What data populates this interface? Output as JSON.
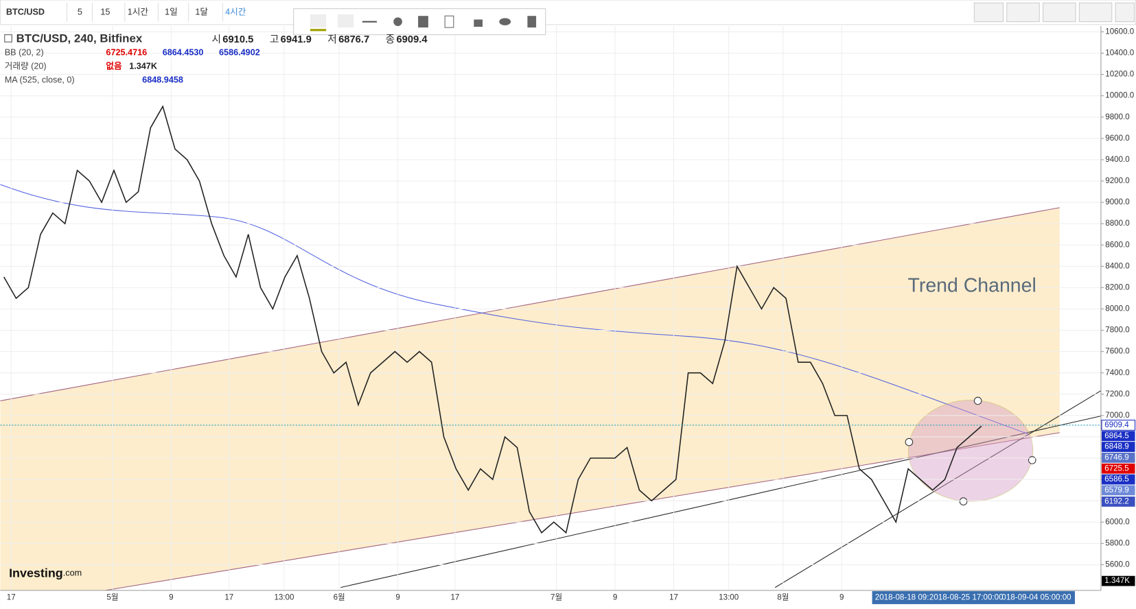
{
  "toolbar": {
    "symbol": "BTC/USD",
    "intervals": [
      "5",
      "15",
      "1시간",
      "1일",
      "1달",
      "4시간"
    ]
  },
  "legend": {
    "title": "BTC/USD, 240, Bitfinex",
    "ohlc": [
      [
        "시",
        "6910.5"
      ],
      [
        "고",
        "6941.9"
      ],
      [
        "저",
        "6876.7"
      ],
      [
        "종",
        "6909.4"
      ]
    ],
    "bb": {
      "name": "BB (20, 2)",
      "values": [
        "6725.4716",
        "6864.4530",
        "6586.4902"
      ]
    },
    "volume": {
      "name": "거래량 (20)",
      "values": [
        "없음",
        "1.347K"
      ]
    },
    "ma": {
      "name": "MA (525, close, 0)",
      "values": [
        "6848.9458"
      ]
    }
  },
  "chart_data": {
    "type": "line",
    "annotation": "Trend Channel",
    "color": "#222222",
    "values": [
      8300,
      8100,
      8200,
      8700,
      8900,
      8800,
      9300,
      9200,
      9000,
      9300,
      9000,
      9100,
      9700,
      9900,
      9500,
      9400,
      9200,
      8800,
      8500,
      8300,
      8700,
      8200,
      8000,
      8300,
      8500,
      8100,
      7600,
      7400,
      7500,
      7100,
      7400,
      7500,
      7600,
      7500,
      7600,
      7500,
      6800,
      6500,
      6300,
      6500,
      6400,
      6800,
      6700,
      6100,
      5900,
      6000,
      5900,
      6400,
      6600,
      6600,
      6600,
      6700,
      6300,
      6200,
      6300,
      6400,
      7400,
      7400,
      7300,
      7700,
      8400,
      8200,
      8000,
      8200,
      8100,
      7500,
      7500,
      7300,
      7000,
      7000,
      6500,
      6400,
      6200,
      6000,
      6500,
      6400,
      6300,
      6400,
      6700,
      6800,
      6900
    ],
    "ylim": [
      5400,
      10600
    ],
    "yticks": [
      {
        "value": 5600,
        "label": "5600.0"
      },
      {
        "value": 5800,
        "label": "5800.0"
      },
      {
        "value": 6000,
        "label": "6000.0"
      },
      {
        "value": 6200,
        "label": "6200.0"
      },
      {
        "value": 6400,
        "label": "6400.0"
      },
      {
        "value": 6600,
        "label": "6600.0"
      },
      {
        "value": 6800,
        "label": "6800.0"
      },
      {
        "value": 7000,
        "label": "7000.0"
      },
      {
        "value": 7200,
        "label": "7200.0"
      },
      {
        "value": 7400,
        "label": "7400.0"
      },
      {
        "value": 7600,
        "label": "7600.0"
      },
      {
        "value": 7800,
        "label": "7800.0"
      },
      {
        "value": 8000,
        "label": "8000.0"
      },
      {
        "value": 8200,
        "label": "8200.0"
      },
      {
        "value": 8400,
        "label": "8400.0"
      },
      {
        "value": 8600,
        "label": "8600.0"
      },
      {
        "value": 8800,
        "label": "8800.0"
      },
      {
        "value": 9000,
        "label": "9000.0"
      },
      {
        "value": 9200,
        "label": "9200.0"
      },
      {
        "value": 9400,
        "label": "9400.0"
      },
      {
        "value": 9600,
        "label": "9600.0"
      },
      {
        "value": 9800,
        "label": "9800.0"
      },
      {
        "value": 10000,
        "label": "10000.0"
      },
      {
        "value": 10200,
        "label": "10200.0"
      },
      {
        "value": 10400,
        "label": "10400.0"
      },
      {
        "value": 10600,
        "label": "10600.0"
      }
    ],
    "x_labels": [
      "17",
      "5월",
      "9",
      "17",
      "13:00",
      "6월",
      "9",
      "17",
      "7월",
      "9",
      "17",
      "13:00",
      "8월",
      "9"
    ],
    "price_tags": [
      {
        "value": 6909.4,
        "color": "#ffffff"
      },
      {
        "value": 6864.5,
        "color": "#1a2fc4"
      },
      {
        "value": 6848.9,
        "color": "#1a2fc4"
      },
      {
        "value": 6746.9,
        "color": "#5a73c8"
      },
      {
        "value": 6725.5,
        "color": "#e00000"
      },
      {
        "value": 6586.5,
        "color": "#1a2fc4"
      },
      {
        "value": 6579.9,
        "color": "#6f8ad8"
      },
      {
        "value": 6192.2,
        "color": "#3a50c0"
      }
    ],
    "volume_tag": "1.347K",
    "date_labels": [
      "2018-08-18 09:",
      "2018-08-25 17:00:00",
      "018-09-04 05:00:00"
    ]
  }
}
